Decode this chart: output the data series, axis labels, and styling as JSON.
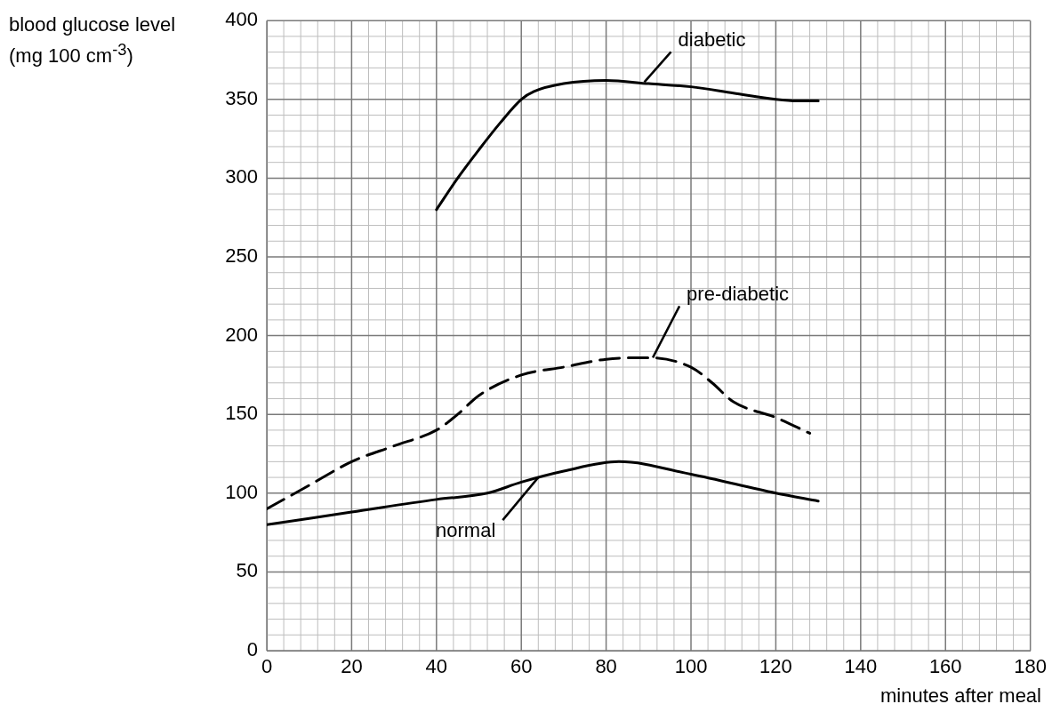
{
  "chart_data": {
    "type": "line",
    "xlabel": "minutes after meal",
    "ylabel": "blood glucose level\n(mg 100 cm$^{-3}$)",
    "xlim": [
      0,
      180
    ],
    "xticks": [
      0,
      20,
      40,
      60,
      80,
      100,
      120,
      140,
      160,
      180
    ],
    "ylim": [
      0,
      400
    ],
    "yticks": [
      0,
      50,
      100,
      150,
      200,
      250,
      300,
      350,
      400
    ],
    "grid": true,
    "marker": "none",
    "legend": false,
    "series": [
      {
        "color": "#000000",
        "line_style": "solid",
        "x": [
          40,
          45,
          50,
          55,
          60,
          63,
          70,
          80,
          90,
          100,
          110,
          120,
          125,
          130
        ],
        "values": [
          280,
          300,
          318,
          335,
          350,
          355,
          360,
          362,
          360,
          358,
          354,
          350,
          349,
          349
        ]
      },
      {
        "color": "#000000",
        "line_style": "dashed",
        "x": [
          0,
          10,
          20,
          30,
          40,
          45,
          50,
          60,
          70,
          80,
          90,
          100,
          105,
          110,
          120,
          128
        ],
        "values": [
          90,
          105,
          120,
          130,
          140,
          150,
          162,
          175,
          180,
          185,
          186,
          180,
          170,
          158,
          148,
          138
        ]
      },
      {
        "color": "#000000",
        "line_style": "solid",
        "x": [
          0,
          20,
          40,
          52,
          60,
          70,
          83,
          100,
          120,
          130
        ],
        "values": [
          80,
          88,
          96,
          100,
          107,
          114,
          120,
          112,
          100,
          95
        ]
      }
    ],
    "annotations": [
      {
        "text": "diabetic",
        "x": 89,
        "y": 361
      },
      {
        "text": "pre-diabetic",
        "x": 91,
        "y": 186
      },
      {
        "text": "normal",
        "x": 64,
        "y": 110
      }
    ]
  }
}
